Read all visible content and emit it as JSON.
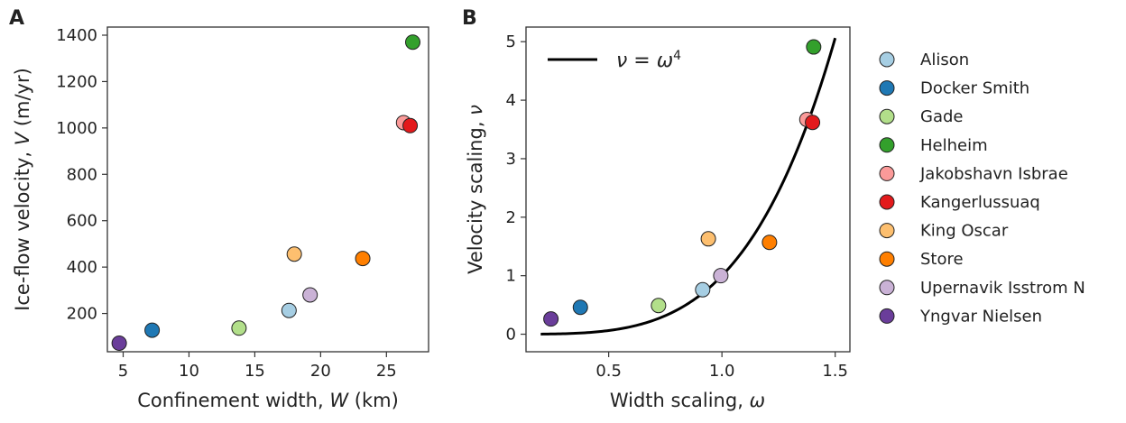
{
  "legend": [
    {
      "name": "Alison",
      "color": "#a6cee3"
    },
    {
      "name": "Docker Smith",
      "color": "#1f78b4"
    },
    {
      "name": "Gade",
      "color": "#b2df8a"
    },
    {
      "name": "Helheim",
      "color": "#33a02c"
    },
    {
      "name": "Jakobshavn Isbrae",
      "color": "#fb9a99"
    },
    {
      "name": "Kangerlussuaq",
      "color": "#e31a1c"
    },
    {
      "name": "King Oscar",
      "color": "#fdbf6f"
    },
    {
      "name": "Store",
      "color": "#ff7f00"
    },
    {
      "name": "Upernavik Isstrom N",
      "color": "#cab2d6"
    },
    {
      "name": "Yngvar Nielsen",
      "color": "#6a3d9a"
    }
  ],
  "chart_data": [
    {
      "panel": "A",
      "type": "scatter",
      "xlabel_prefix": "Confinement width, ",
      "xlabel_var": "W",
      "xlabel_suffix": " (km)",
      "ylabel_prefix": "Ice-flow velocity, ",
      "ylabel_var": "V",
      "ylabel_suffix": " (m/yr)",
      "xlim": [
        3.8,
        28.2
      ],
      "ylim": [
        35,
        1435
      ],
      "xticks": [
        5,
        10,
        15,
        20,
        25
      ],
      "yticks": [
        200,
        400,
        600,
        800,
        1000,
        1200,
        1400
      ],
      "grid": false,
      "points": [
        {
          "name": "Alison",
          "x": 17.6,
          "y": 213
        },
        {
          "name": "Docker Smith",
          "x": 7.2,
          "y": 128
        },
        {
          "name": "Gade",
          "x": 13.8,
          "y": 137
        },
        {
          "name": "Helheim",
          "x": 27.0,
          "y": 1370
        },
        {
          "name": "Jakobshavn Isbrae",
          "x": 26.3,
          "y": 1023
        },
        {
          "name": "Kangerlussuaq",
          "x": 26.8,
          "y": 1010
        },
        {
          "name": "King Oscar",
          "x": 18.0,
          "y": 456
        },
        {
          "name": "Store",
          "x": 23.2,
          "y": 437
        },
        {
          "name": "Upernavik Isstrom N",
          "x": 19.2,
          "y": 280
        },
        {
          "name": "Yngvar Nielsen",
          "x": 4.7,
          "y": 72
        }
      ]
    },
    {
      "panel": "B",
      "type": "scatter",
      "xlabel_prefix": "Width scaling, ",
      "xlabel_var": "ω",
      "xlabel_suffix": "",
      "ylabel_prefix": "Velocity scaling, ",
      "ylabel_var": "ν",
      "ylabel_suffix": "",
      "xlim": [
        0.135,
        1.565
      ],
      "ylim": [
        -0.3,
        5.25
      ],
      "xticks": [
        0.5,
        1.0,
        1.5
      ],
      "yticks": [
        0,
        1,
        2,
        3,
        4,
        5
      ],
      "grid": false,
      "curve": {
        "label_lhs": "ν = ω",
        "label_exp": "4",
        "exponent": 4,
        "x_range": [
          0.2,
          1.5
        ],
        "color": "#000000"
      },
      "points": [
        {
          "name": "Alison",
          "x": 0.915,
          "y": 0.76
        },
        {
          "name": "Docker Smith",
          "x": 0.375,
          "y": 0.46
        },
        {
          "name": "Gade",
          "x": 0.72,
          "y": 0.49
        },
        {
          "name": "Helheim",
          "x": 1.405,
          "y": 4.91
        },
        {
          "name": "Jakobshavn Isbrae",
          "x": 1.375,
          "y": 3.67
        },
        {
          "name": "Kangerlussuaq",
          "x": 1.4,
          "y": 3.62
        },
        {
          "name": "King Oscar",
          "x": 0.94,
          "y": 1.63
        },
        {
          "name": "Store",
          "x": 1.21,
          "y": 1.57
        },
        {
          "name": "Upernavik Isstrom N",
          "x": 0.995,
          "y": 1.0
        },
        {
          "name": "Yngvar Nielsen",
          "x": 0.245,
          "y": 0.26
        }
      ]
    }
  ]
}
